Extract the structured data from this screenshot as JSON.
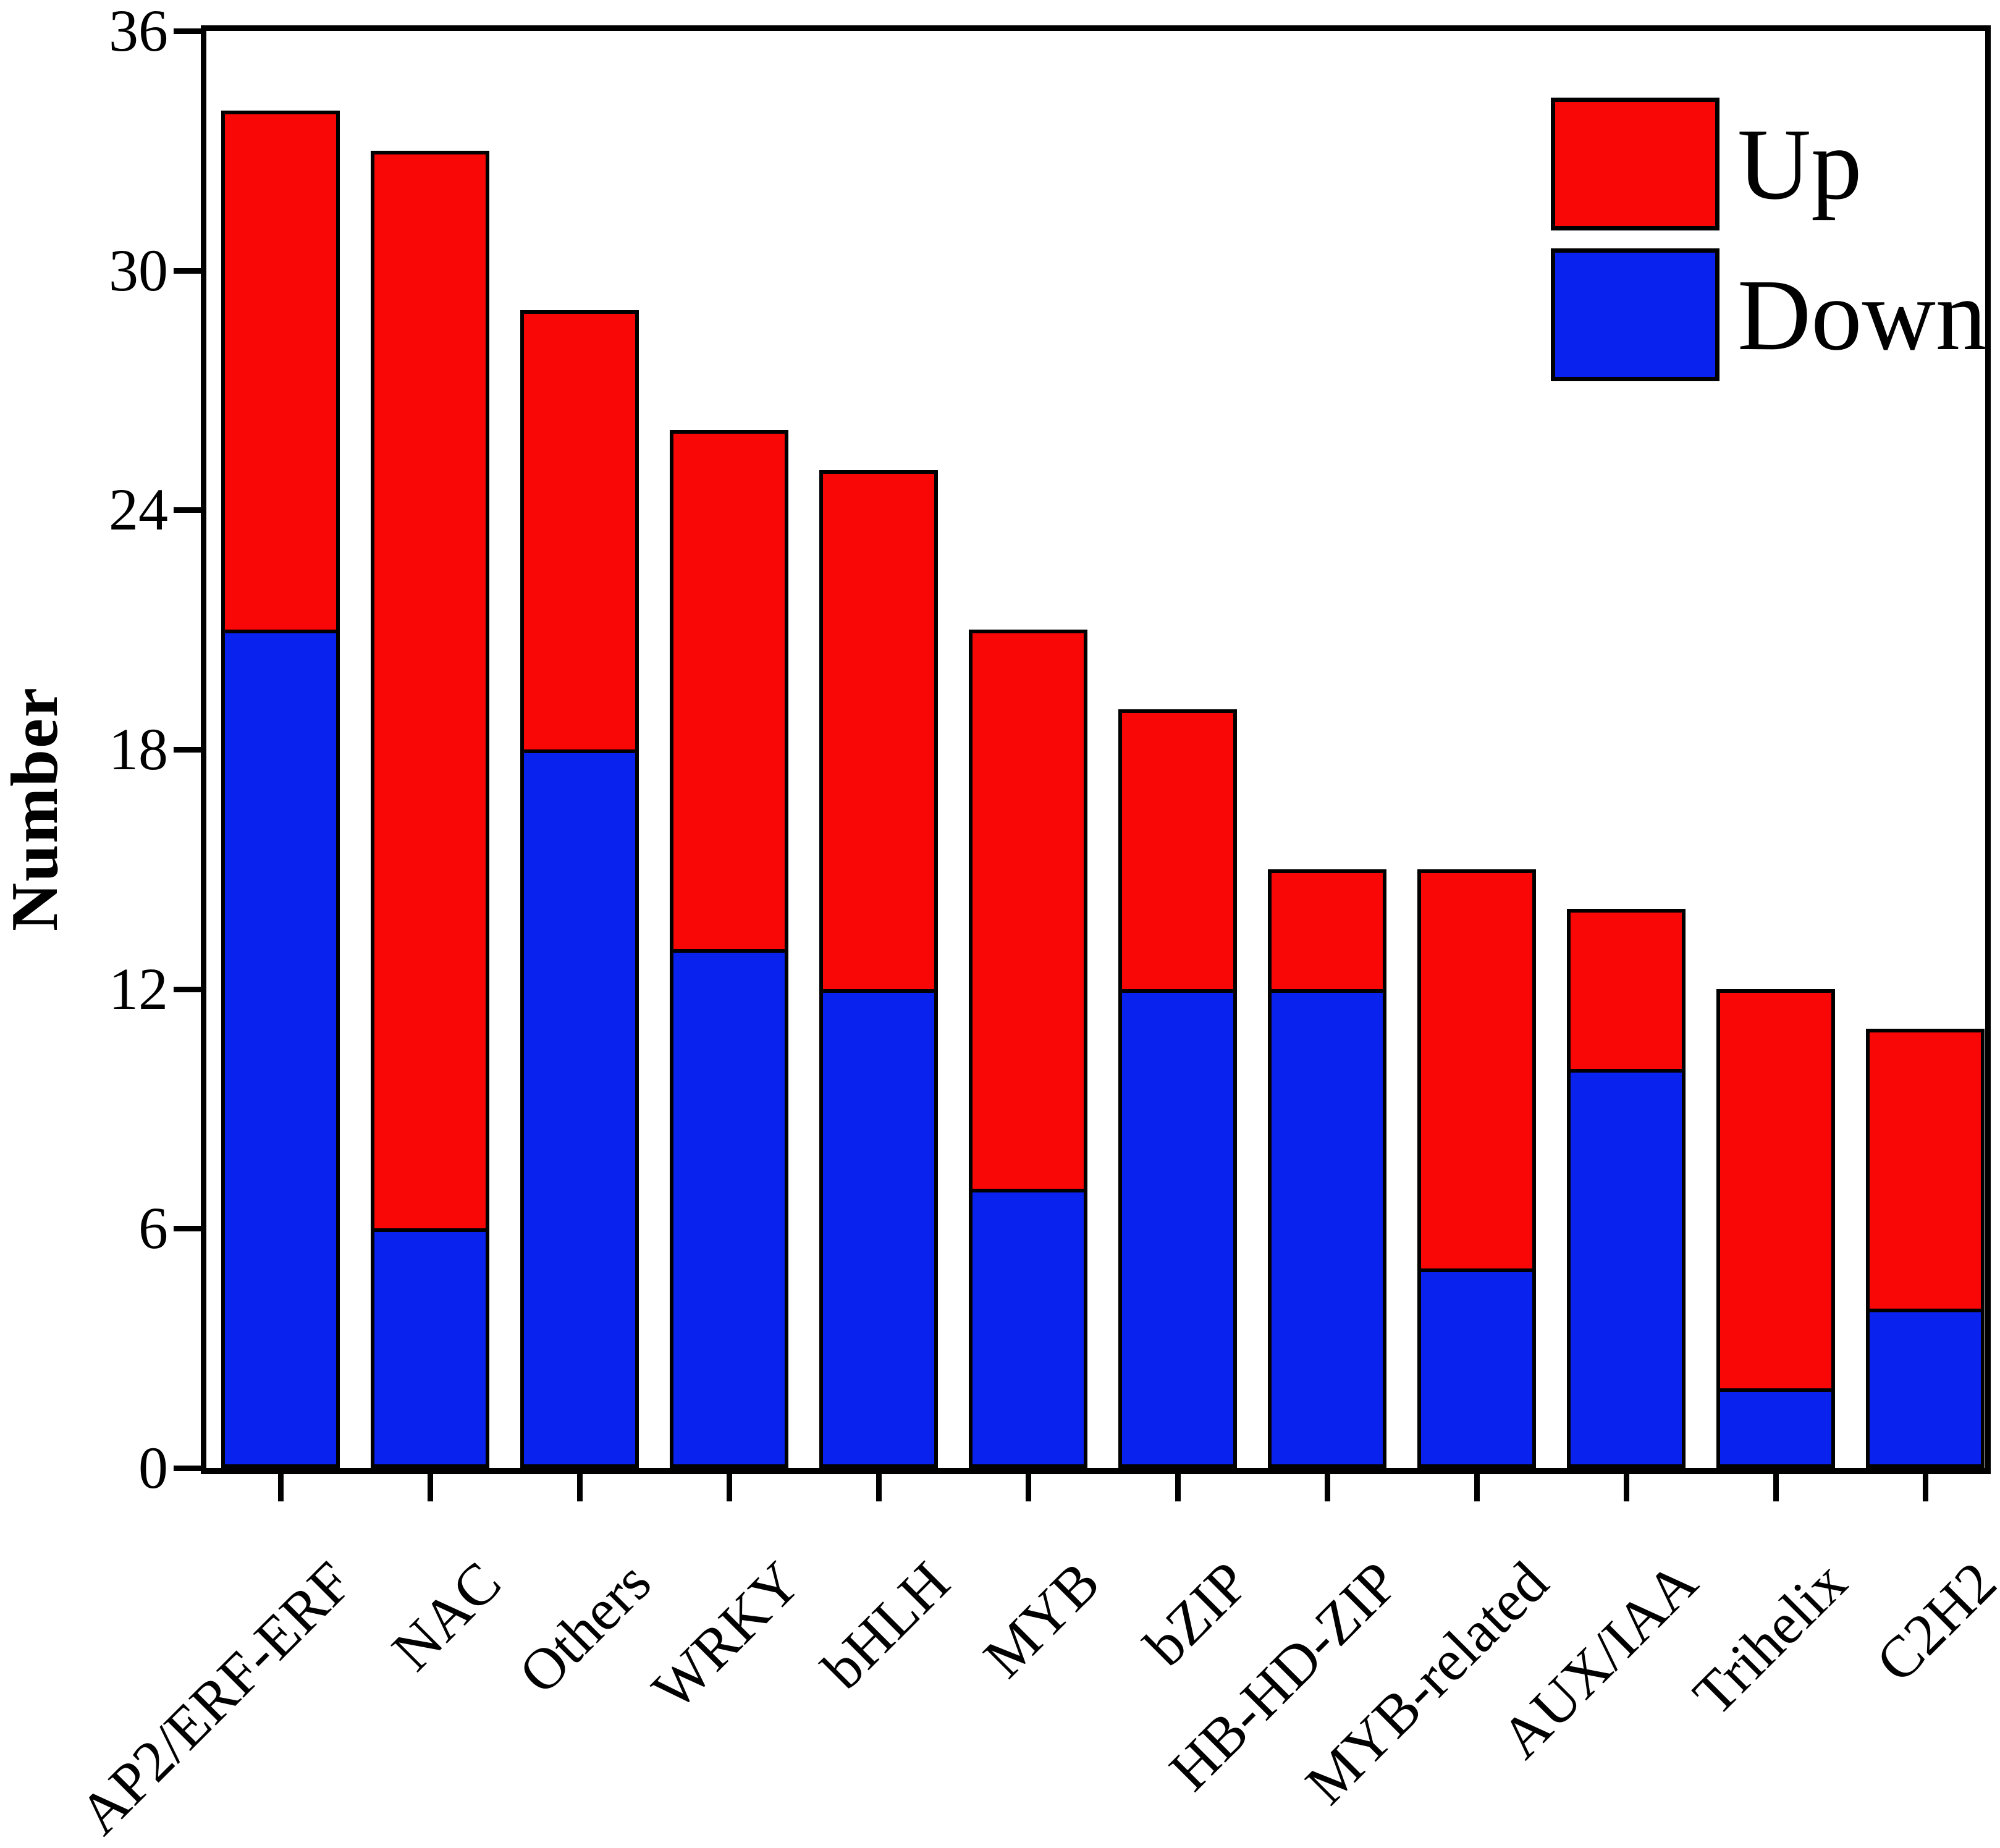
{
  "page": {
    "background": "#ffffff"
  },
  "chart_data": {
    "type": "bar",
    "stacked": true,
    "title": "",
    "xlabel": "",
    "ylabel": "Number",
    "categories": [
      "AP2/ERF-ERF",
      "NAC",
      "Others",
      "WRKY",
      "bHLH",
      "MYB",
      "bZIP",
      "HB-HD-ZIP",
      "MYB-related",
      "AUX/IAA",
      "Trihelix",
      "C2H2"
    ],
    "series": [
      {
        "name": "Down",
        "color": "#0a22ee",
        "values": [
          21,
          6,
          18,
          13,
          12,
          7,
          12,
          12,
          5,
          10,
          2,
          4
        ]
      },
      {
        "name": "Up",
        "color": "#f90606",
        "values": [
          13,
          27,
          11,
          13,
          13,
          14,
          7,
          3,
          10,
          4,
          10,
          7
        ]
      }
    ],
    "totals": [
      34,
      33,
      29,
      26,
      25,
      21,
      19,
      15,
      15,
      14,
      12,
      11
    ],
    "ylim": [
      0,
      36
    ],
    "yticks": [
      0,
      6,
      12,
      18,
      24,
      30,
      36
    ],
    "grid": false,
    "bar_border_color": "#000000",
    "axis_color": "#000000",
    "legend": {
      "position": "top-right",
      "entries": [
        {
          "label": "Up",
          "color": "#f90606"
        },
        {
          "label": "Down",
          "color": "#0a22ee"
        }
      ]
    }
  }
}
